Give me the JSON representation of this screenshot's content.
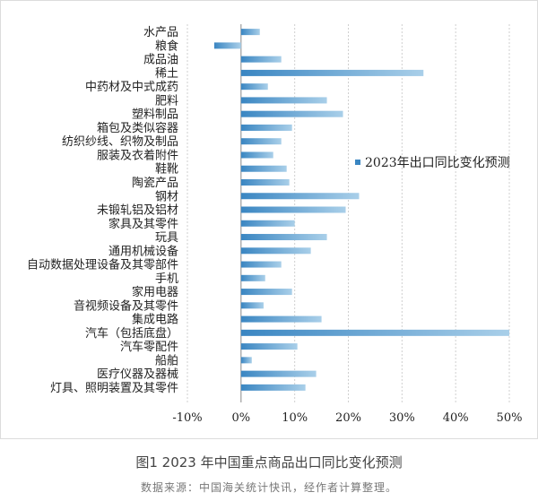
{
  "caption": "图1 2023 年中国重点商品出口同比变化预测",
  "source": "数据来源：中国海关统计快讯，经作者计算整理。",
  "colors": {
    "bar_start": "#3a86c2",
    "bar_end": "#a9cfe9",
    "grid": "#cfcfcf",
    "axis": "#888888"
  },
  "chart_data": {
    "type": "bar",
    "orientation": "horizontal",
    "categories": [
      "水产品",
      "粮食",
      "成品油",
      "稀土",
      "中药材及中式成药",
      "肥料",
      "塑料制品",
      "箱包及类似容器",
      "纺织纱线、织物及制品",
      "服装及衣着附件",
      "鞋靴",
      "陶瓷产品",
      "钢材",
      "未锻轧铝及铝材",
      "家具及其零件",
      "玩具",
      "通用机械设备",
      "自动数据处理设备及其零部件",
      "手机",
      "家用电器",
      "音视频设备及其零件",
      "集成电路",
      "汽车（包括底盘）",
      "汽车零配件",
      "船舶",
      "医疗仪器及器械",
      "灯具、照明装置及其零件"
    ],
    "series": [
      {
        "name": "2023年出口同比变化预测",
        "values": [
          3.5,
          -5,
          7.5,
          34,
          5,
          16,
          19,
          9.5,
          7.5,
          6,
          8.5,
          9,
          22,
          19.5,
          10,
          16,
          13,
          7.5,
          4.5,
          9.5,
          4.2,
          15,
          50,
          10.5,
          2,
          14,
          12
        ]
      }
    ],
    "xlim": [
      -10,
      50
    ],
    "xticks": [
      -10,
      0,
      10,
      20,
      30,
      40,
      50
    ],
    "tick_labels": [
      "-10%",
      "0%",
      "10%",
      "20%",
      "30%",
      "40%",
      "50%"
    ],
    "legend_position": "right",
    "grid": "vertical dashed"
  }
}
